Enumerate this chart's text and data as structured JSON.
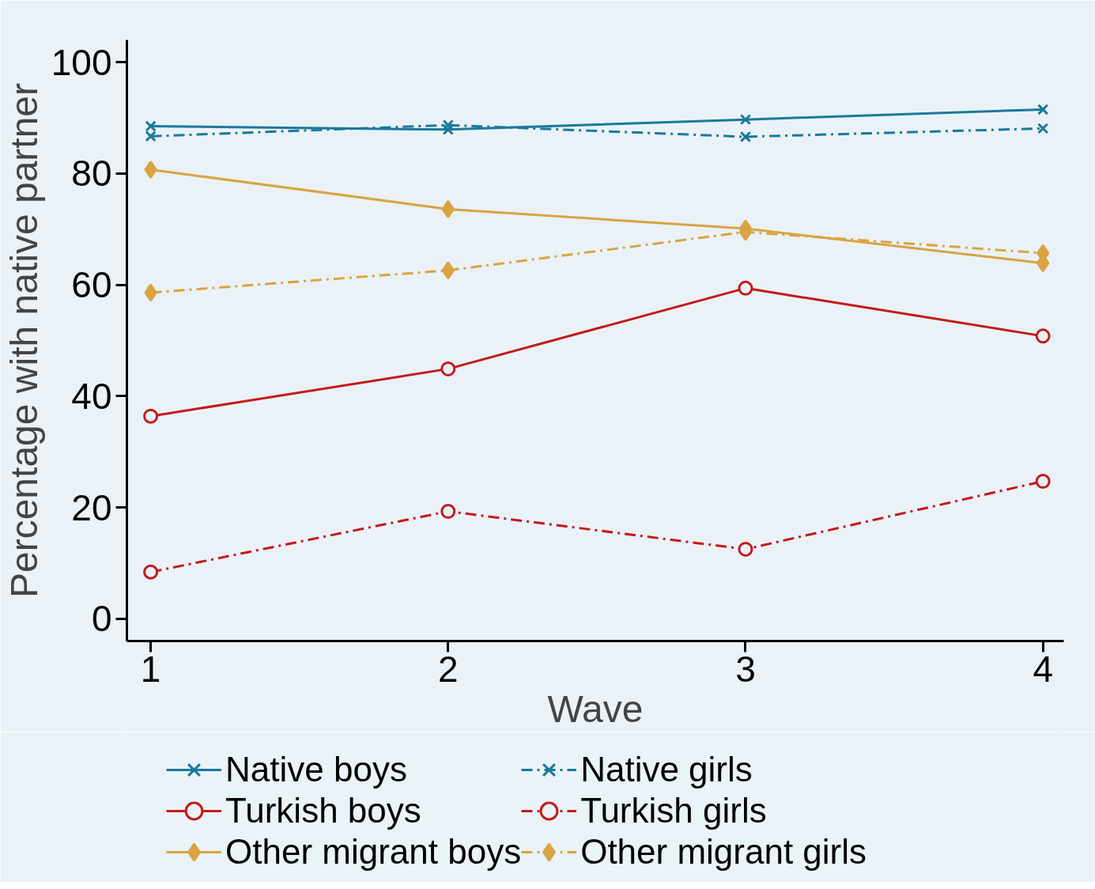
{
  "chart_data": {
    "type": "line",
    "xlabel": "Wave",
    "ylabel": "Percentage with native partner",
    "x": [
      1,
      2,
      3,
      4
    ],
    "series": [
      {
        "name": "Native boys",
        "color": "#1a7a9a",
        "values": [
          88.5,
          87.9,
          89.7,
          91.5
        ],
        "marker": "cross",
        "line_style": "solid"
      },
      {
        "name": "Native girls",
        "color": "#1a7a9a",
        "values": [
          86.7,
          88.7,
          86.6,
          88.1
        ],
        "marker": "cross",
        "line_style": "dashdot"
      },
      {
        "name": "Turkish boys",
        "color": "#c41a1a",
        "values": [
          36.4,
          44.9,
          59.4,
          50.8
        ],
        "marker": "circle",
        "line_style": "solid"
      },
      {
        "name": "Turkish girls",
        "color": "#c41a1a",
        "values": [
          8.4,
          19.3,
          12.5,
          24.7
        ],
        "marker": "circle",
        "line_style": "dashdot"
      },
      {
        "name": "Other migrant boys",
        "color": "#d9a441",
        "values": [
          80.7,
          73.6,
          70.1,
          63.9
        ],
        "marker": "diamond",
        "line_style": "solid"
      },
      {
        "name": "Other migrant girls",
        "color": "#d9a441",
        "values": [
          58.6,
          62.6,
          69.5,
          65.7
        ],
        "marker": "diamond",
        "line_style": "dashdot"
      }
    ],
    "xlim": [
      0.92,
      4.07
    ],
    "ylim": [
      -4,
      104
    ],
    "xticks": [
      1,
      2,
      3,
      4
    ],
    "yticks": [
      0,
      20,
      40,
      60,
      80,
      100
    ],
    "grid": false,
    "legend": "bottom"
  }
}
